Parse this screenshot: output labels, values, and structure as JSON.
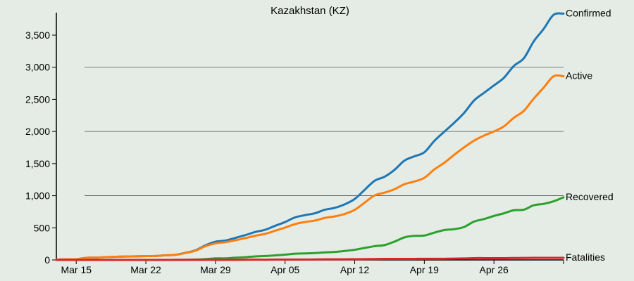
{
  "chart_data": {
    "type": "line",
    "title": "Kazakhstan (KZ)",
    "xlabel": "",
    "ylabel": "",
    "x_start": "2020-03-13",
    "x_end": "2020-05-03",
    "xticks": [
      {
        "date": "2020-03-15",
        "label": "Mar 15"
      },
      {
        "date": "2020-03-22",
        "label": "Mar 22"
      },
      {
        "date": "2020-03-29",
        "label": "Mar 29"
      },
      {
        "date": "2020-04-05",
        "label": "Apr 05"
      },
      {
        "date": "2020-04-12",
        "label": "Apr 12"
      },
      {
        "date": "2020-04-19",
        "label": "Apr 19"
      },
      {
        "date": "2020-04-26",
        "label": "Apr 26"
      }
    ],
    "ylim": [
      0,
      3850
    ],
    "yticks": [
      {
        "value": 0,
        "label": "0"
      },
      {
        "value": 500,
        "label": "500"
      },
      {
        "value": 1000,
        "label": "1,000"
      },
      {
        "value": 1500,
        "label": "1,500"
      },
      {
        "value": 2000,
        "label": "2,000"
      },
      {
        "value": 2500,
        "label": "2,500"
      },
      {
        "value": 3000,
        "label": "3,000"
      },
      {
        "value": 3500,
        "label": "3,500"
      }
    ],
    "gridlines": [
      1000,
      2000,
      3000
    ],
    "legend": "labels at line ends",
    "x": [
      "2020-03-13",
      "2020-03-14",
      "2020-03-15",
      "2020-03-16",
      "2020-03-17",
      "2020-03-18",
      "2020-03-19",
      "2020-03-20",
      "2020-03-21",
      "2020-03-22",
      "2020-03-23",
      "2020-03-24",
      "2020-03-25",
      "2020-03-26",
      "2020-03-27",
      "2020-03-28",
      "2020-03-29",
      "2020-03-30",
      "2020-03-31",
      "2020-04-01",
      "2020-04-02",
      "2020-04-03",
      "2020-04-04",
      "2020-04-05",
      "2020-04-06",
      "2020-04-07",
      "2020-04-08",
      "2020-04-09",
      "2020-04-10",
      "2020-04-11",
      "2020-04-12",
      "2020-04-13",
      "2020-04-14",
      "2020-04-15",
      "2020-04-16",
      "2020-04-17",
      "2020-04-18",
      "2020-04-19",
      "2020-04-20",
      "2020-04-21",
      "2020-04-22",
      "2020-04-23",
      "2020-04-24",
      "2020-04-25",
      "2020-04-26",
      "2020-04-27",
      "2020-04-28",
      "2020-04-29",
      "2020-04-30",
      "2020-05-01",
      "2020-05-02",
      "2020-05-03"
    ],
    "series": [
      {
        "name": "Confirmed",
        "color": "#1f77b4",
        "values": [
          6,
          9,
          10,
          33,
          36,
          44,
          49,
          53,
          56,
          60,
          62,
          72,
          81,
          111,
          150,
          228,
          284,
          302,
          343,
          386,
          435,
          470,
          531,
          590,
          662,
          697,
          727,
          781,
          812,
          866,
          949,
          1091,
          1232,
          1295,
          1402,
          1546,
          1613,
          1676,
          1852,
          1995,
          2135,
          2289,
          2482,
          2601,
          2717,
          2835,
          3020,
          3138,
          3402,
          3597,
          3816,
          3835
        ]
      },
      {
        "name": "Active",
        "color": "#ff7f0e",
        "values": [
          6,
          9,
          10,
          33,
          36,
          44,
          49,
          53,
          56,
          60,
          62,
          72,
          80,
          108,
          144,
          214,
          258,
          276,
          306,
          340,
          376,
          406,
          455,
          503,
          559,
          590,
          613,
          655,
          678,
          716,
          780,
          892,
          1004,
          1048,
          1101,
          1179,
          1221,
          1278,
          1409,
          1512,
          1636,
          1753,
          1857,
          1936,
          2000,
          2079,
          2213,
          2320,
          2511,
          2683,
          2860,
          2860
        ]
      },
      {
        "name": "Recovered",
        "color": "#2ca02c",
        "values": [
          0,
          0,
          0,
          0,
          0,
          0,
          0,
          0,
          0,
          0,
          0,
          0,
          0,
          2,
          5,
          12,
          24,
          24,
          35,
          43,
          55,
          61,
          71,
          82,
          97,
          101,
          107,
          117,
          124,
          140,
          158,
          187,
          214,
          231,
          285,
          351,
          375,
          380,
          425,
          465,
          479,
          513,
          597,
          637,
          685,
          726,
          774,
          782,
          851,
          873,
          913,
          975
        ]
      },
      {
        "name": "Fatalities",
        "color": "#d62728",
        "values": [
          0,
          0,
          0,
          0,
          0,
          0,
          0,
          0,
          0,
          0,
          0,
          0,
          1,
          1,
          1,
          2,
          2,
          2,
          2,
          3,
          4,
          3,
          5,
          5,
          6,
          6,
          7,
          9,
          10,
          10,
          11,
          12,
          14,
          16,
          16,
          16,
          17,
          18,
          18,
          18,
          20,
          23,
          28,
          28,
          28,
          28,
          30,
          31,
          33,
          33,
          33,
          33
        ]
      }
    ]
  }
}
